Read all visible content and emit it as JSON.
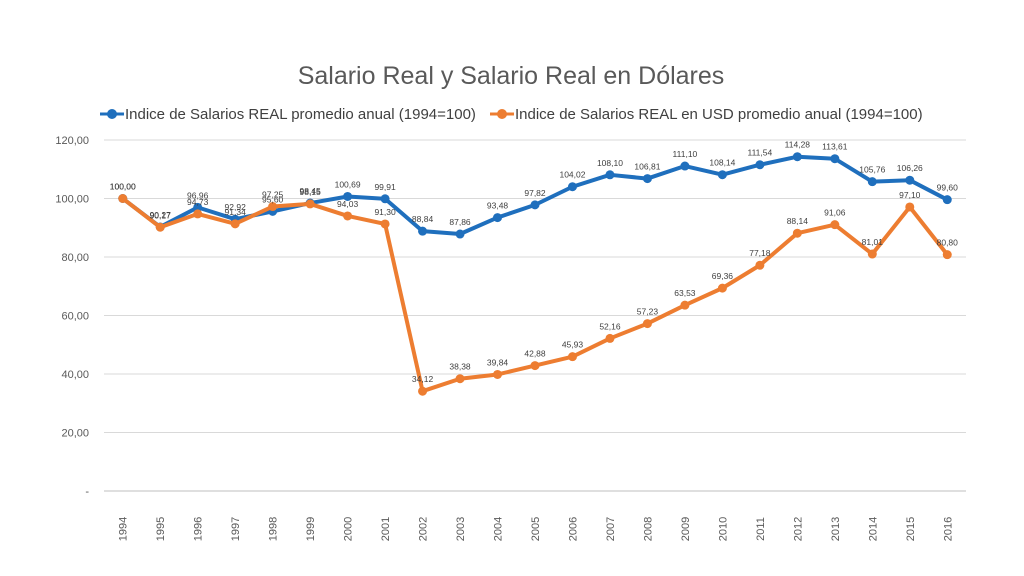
{
  "chart_data": {
    "type": "line",
    "title": "Salario Real y Salario Real en Dólares",
    "categories": [
      "1994",
      "1995",
      "1996",
      "1997",
      "1998",
      "1999",
      "2000",
      "2001",
      "2002",
      "2003",
      "2004",
      "2005",
      "2006",
      "2007",
      "2008",
      "2009",
      "2010",
      "2011",
      "2012",
      "2013",
      "2014",
      "2015",
      "2016"
    ],
    "series": [
      {
        "name": "Indice de Salarios REAL promedio anual (1994=100)",
        "color": "#1f6fbd",
        "values": [
          100.0,
          90.27,
          96.96,
          92.92,
          95.6,
          98.45,
          100.69,
          99.91,
          88.84,
          87.86,
          93.48,
          97.82,
          104.02,
          108.1,
          106.81,
          111.1,
          108.14,
          111.54,
          114.28,
          113.61,
          105.76,
          106.26,
          99.6
        ],
        "labels": [
          "100,00",
          "90,27",
          "96,96",
          "92,92",
          "95,60",
          "98,45",
          "100,69",
          "99,91",
          "88,84",
          "87,86",
          "93,48",
          "97,82",
          "104,02",
          "108,10",
          "106,81",
          "111,10",
          "108,14",
          "111,54",
          "114,28",
          "113,61",
          "105,76",
          "106,26",
          "99,60"
        ]
      },
      {
        "name": "Indice de Salarios REAL en USD promedio anual (1994=100)",
        "color": "#ed7d31",
        "values": [
          100.0,
          90.17,
          94.73,
          91.34,
          97.25,
          98.15,
          94.03,
          91.3,
          34.12,
          38.38,
          39.84,
          42.88,
          45.93,
          52.16,
          57.23,
          63.53,
          69.36,
          77.18,
          88.14,
          91.06,
          81.01,
          97.1,
          80.8
        ],
        "labels": [
          "100,00",
          "90,17",
          "94,73",
          "91,34",
          "97,25",
          "98,15",
          "94,03",
          "91,30",
          "34,12",
          "38,38",
          "39,84",
          "42,88",
          "45,93",
          "52,16",
          "57,23",
          "63,53",
          "69,36",
          "77,18",
          "88,14",
          "91,06",
          "81,01",
          "97,10",
          "80,80"
        ]
      }
    ],
    "ylim": [
      0,
      120
    ],
    "yticks": [
      "-",
      "20,00",
      "40,00",
      "60,00",
      "80,00",
      "100,00",
      "120,00"
    ],
    "grid": true,
    "legend_position": "top"
  }
}
